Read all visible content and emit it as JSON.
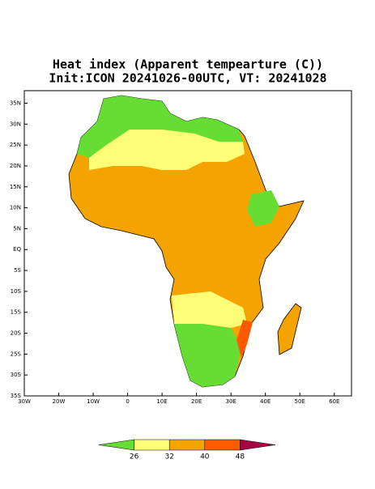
{
  "map": {
    "title": "Heat index (Apparent tempearture (C))",
    "subtitle": "Init:ICON 20241026-00UTC, VT: 20241028",
    "xlim": [
      -30,
      65
    ],
    "ylim": [
      -35,
      38
    ],
    "xticks": [
      {
        "value": -30,
        "label": "30W"
      },
      {
        "value": -20,
        "label": "20W"
      },
      {
        "value": -10,
        "label": "10W"
      },
      0,
      {
        "value": 10,
        "label": "10E"
      },
      {
        "value": 20,
        "label": "20E"
      },
      {
        "value": 30,
        "label": "30E"
      },
      {
        "value": 40,
        "label": "40E"
      },
      {
        "value": 50,
        "label": "50E"
      },
      {
        "value": 60,
        "label": "60E"
      }
    ],
    "yticks": [
      {
        "value": 35,
        "label": "35N"
      },
      {
        "value": 30,
        "label": "30N"
      },
      {
        "value": 25,
        "label": "25N"
      },
      {
        "value": 20,
        "label": "20N"
      },
      {
        "value": 15,
        "label": "15N"
      },
      {
        "value": 10,
        "label": "10N"
      },
      {
        "value": 5,
        "label": "5N"
      },
      {
        "value": 0,
        "label": "EQ"
      },
      {
        "value": -5,
        "label": "5S"
      },
      {
        "value": -10,
        "label": "10S"
      },
      {
        "value": -15,
        "label": "15S"
      },
      {
        "value": -20,
        "label": "20S"
      },
      {
        "value": -25,
        "label": "25S"
      },
      {
        "value": -30,
        "label": "30S"
      },
      {
        "value": -35,
        "label": "35S"
      }
    ],
    "colorbar": {
      "colors": [
        "#66dd33",
        "#ffff77",
        "#f5a300",
        "#ff5a00",
        "#aa0044"
      ],
      "ticks": [
        26,
        32,
        40,
        48
      ]
    }
  }
}
